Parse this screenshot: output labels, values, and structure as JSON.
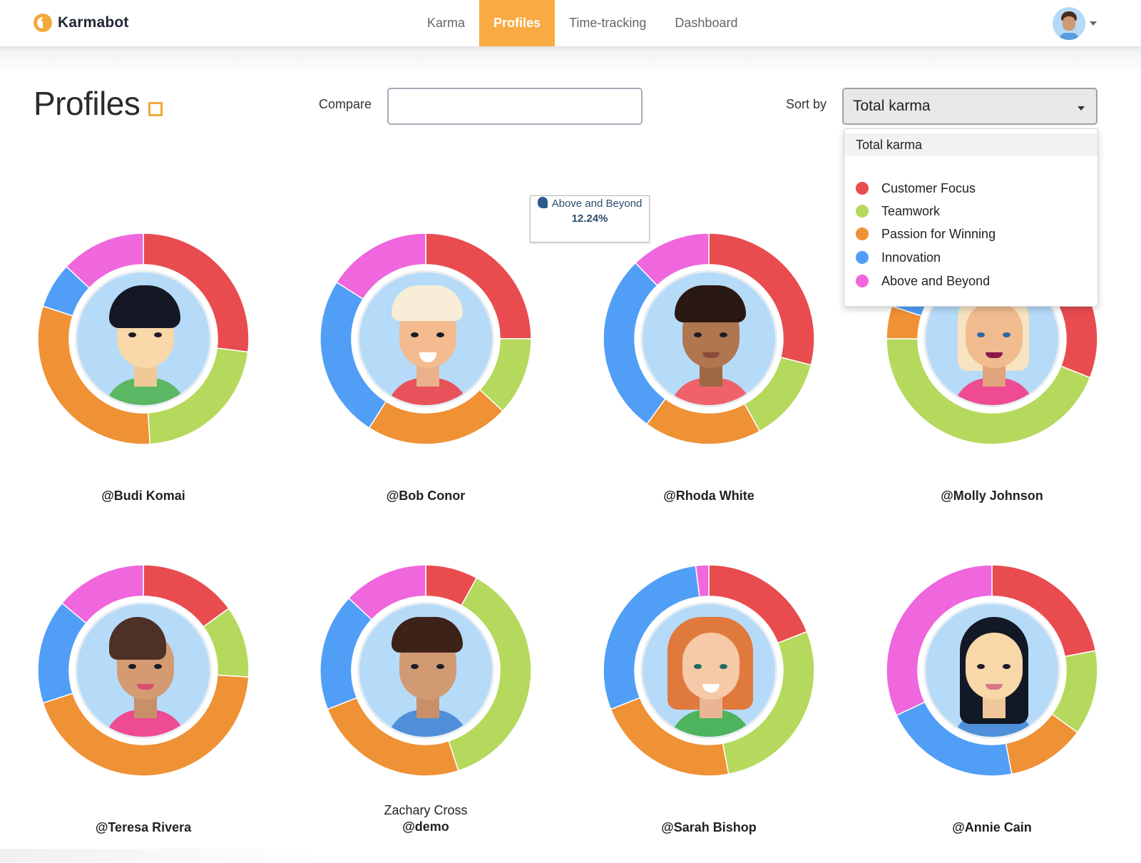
{
  "navbar": {
    "brand": "Karmabot",
    "items": [
      {
        "label": "Karma",
        "active": false
      },
      {
        "label": "Profiles",
        "active": true
      },
      {
        "label": "Time-tracking",
        "active": false
      },
      {
        "label": "Dashboard",
        "active": false
      }
    ]
  },
  "page": {
    "title": "Profiles",
    "compare_label": "Compare",
    "compare_value": "",
    "sort_label": "Sort by",
    "sort_value": "Total karma"
  },
  "sort_dropdown": {
    "header": "Total karma",
    "options": [
      {
        "label": "Customer Focus",
        "color": "#e84c4f"
      },
      {
        "label": "Teamwork",
        "color": "#b5d95c"
      },
      {
        "label": "Passion for Winning",
        "color": "#ef9135"
      },
      {
        "label": "Innovation",
        "color": "#519ef7"
      },
      {
        "label": "Above and Beyond",
        "color": "#ef66dd"
      }
    ]
  },
  "tooltip": {
    "category": "Above and Beyond",
    "value": "12.24%"
  },
  "profiles": [
    {
      "display_name": "",
      "handle": "@Budi Komai"
    },
    {
      "display_name": "",
      "handle": "@Bob Conor"
    },
    {
      "display_name": "",
      "handle": "@Rhoda White"
    },
    {
      "display_name": "",
      "handle": "@Molly Johnson"
    },
    {
      "display_name": "",
      "handle": "@Teresa Rivera"
    },
    {
      "display_name": "Zachary Cross",
      "handle": "@demo"
    },
    {
      "display_name": "",
      "handle": "@Sarah Bishop"
    },
    {
      "display_name": "",
      "handle": "@Annie Cain"
    }
  ],
  "chart_data": [
    {
      "type": "pie",
      "title": "@Budi Komai",
      "categories": [
        "Customer Focus",
        "Teamwork",
        "Passion for Winning",
        "Innovation",
        "Above and Beyond"
      ],
      "values": [
        27,
        22,
        31,
        7,
        13
      ]
    },
    {
      "type": "pie",
      "title": "@Bob Conor",
      "categories": [
        "Customer Focus",
        "Teamwork",
        "Passion for Winning",
        "Innovation",
        "Above and Beyond"
      ],
      "values": [
        25,
        12,
        22,
        25,
        16
      ]
    },
    {
      "type": "pie",
      "title": "@Rhoda White",
      "categories": [
        "Customer Focus",
        "Teamwork",
        "Passion for Winning",
        "Innovation",
        "Above and Beyond"
      ],
      "values": [
        29,
        13,
        18,
        27.76,
        12.24
      ]
    },
    {
      "type": "pie",
      "title": "@Molly Johnson",
      "categories": [
        "Customer Focus",
        "Teamwork",
        "Passion for Winning",
        "Innovation",
        "Above and Beyond"
      ],
      "values": [
        31,
        44,
        5,
        9,
        11
      ]
    },
    {
      "type": "pie",
      "title": "@Teresa Rivera",
      "categories": [
        "Customer Focus",
        "Teamwork",
        "Passion for Winning",
        "Innovation",
        "Above and Beyond"
      ],
      "values": [
        15,
        11,
        44,
        16,
        14
      ]
    },
    {
      "type": "pie",
      "title": "@demo",
      "categories": [
        "Customer Focus",
        "Teamwork",
        "Passion for Winning",
        "Innovation",
        "Above and Beyond"
      ],
      "values": [
        8,
        37,
        24,
        18,
        13
      ]
    },
    {
      "type": "pie",
      "title": "@Sarah Bishop",
      "categories": [
        "Customer Focus",
        "Teamwork",
        "Passion for Winning",
        "Innovation",
        "Above and Beyond"
      ],
      "values": [
        19,
        28,
        22,
        29,
        2
      ]
    },
    {
      "type": "pie",
      "title": "@Annie Cain",
      "categories": [
        "Customer Focus",
        "Teamwork",
        "Passion for Winning",
        "Innovation",
        "Above and Beyond"
      ],
      "values": [
        22,
        13,
        12,
        21,
        32
      ]
    }
  ]
}
